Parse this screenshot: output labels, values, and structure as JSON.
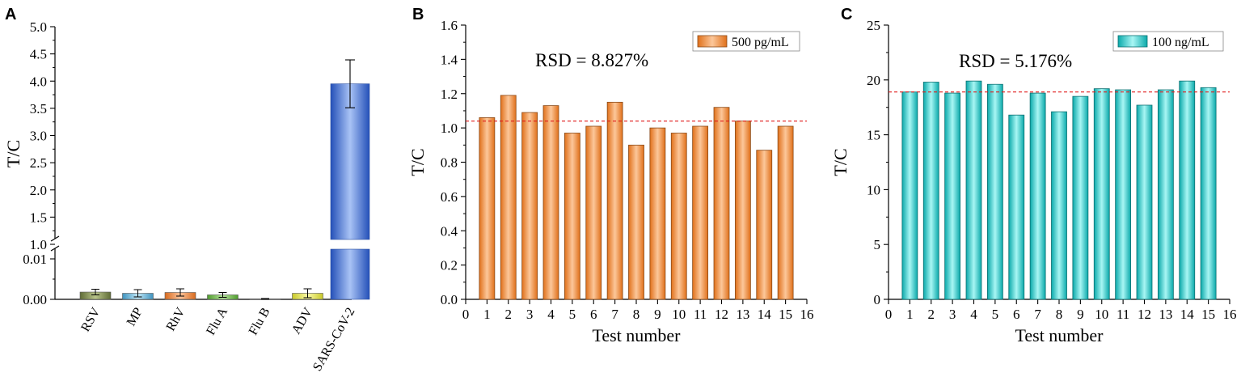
{
  "panels": {
    "a_letter": "A",
    "b_letter": "B",
    "c_letter": "C"
  },
  "colors": {
    "rsv": "#7d8a4e",
    "mp": "#62b4d8",
    "rhv": "#ee8a46",
    "flua": "#6fbf47",
    "flub": "#6f8fd0",
    "adv": "#e8e84a",
    "sars": "#3d6fd3",
    "orange": "#f08a2c",
    "cyan": "#1fc8c8",
    "ref_line": "#e01b1b"
  },
  "chart_data": [
    {
      "panel": "A",
      "type": "bar",
      "ylabel": "T/C",
      "broken_axis": true,
      "lower_ylim": [
        0,
        0.014
      ],
      "upper_ylim": [
        1.0,
        5.0
      ],
      "lower_ticks": [
        "0.00",
        "0.01"
      ],
      "upper_ticks": [
        "1.0",
        "1.5",
        "2.0",
        "2.5",
        "3.0",
        "3.5",
        "4.0",
        "4.5",
        "5.0"
      ],
      "categories": [
        "RSV",
        "MP",
        "RhV",
        "Flu A",
        "Flu B",
        "ADV",
        "SARS-CoV-2"
      ],
      "values": [
        0.0018,
        0.0015,
        0.0017,
        0.0011,
        0.0001,
        0.0015,
        3.95
      ],
      "errors": [
        0.0007,
        0.0009,
        0.0009,
        0.0006,
        0.0001,
        0.0011,
        0.44
      ]
    },
    {
      "panel": "B",
      "type": "bar",
      "xlabel": "Test number",
      "ylabel": "T/C",
      "xlim": [
        0,
        16
      ],
      "ylim": [
        0,
        1.6
      ],
      "x_ticks": [
        "0",
        "1",
        "2",
        "3",
        "4",
        "5",
        "6",
        "7",
        "8",
        "9",
        "10",
        "11",
        "12",
        "13",
        "14",
        "15",
        "16"
      ],
      "y_ticks": [
        "0.0",
        "0.2",
        "0.4",
        "0.6",
        "0.8",
        "1.0",
        "1.2",
        "1.4",
        "1.6"
      ],
      "x": [
        1,
        2,
        3,
        4,
        5,
        6,
        7,
        8,
        9,
        10,
        11,
        12,
        13,
        14,
        15
      ],
      "values": [
        1.06,
        1.19,
        1.09,
        1.13,
        0.97,
        1.01,
        1.15,
        0.9,
        1.0,
        0.97,
        1.01,
        1.12,
        1.04,
        0.87,
        1.01
      ],
      "reference_line": 1.04,
      "annotation": "RSD = 8.827%",
      "legend": "500 pg/mL",
      "legend_position": "top-right"
    },
    {
      "panel": "C",
      "type": "bar",
      "xlabel": "Test number",
      "ylabel": "T/C",
      "xlim": [
        0,
        16
      ],
      "ylim": [
        0,
        25
      ],
      "x_ticks": [
        "0",
        "1",
        "2",
        "3",
        "4",
        "5",
        "6",
        "7",
        "8",
        "9",
        "10",
        "11",
        "12",
        "13",
        "14",
        "15",
        "16"
      ],
      "y_ticks": [
        "0",
        "5",
        "10",
        "15",
        "20",
        "25"
      ],
      "x": [
        1,
        2,
        3,
        4,
        5,
        6,
        7,
        8,
        9,
        10,
        11,
        12,
        13,
        14,
        15
      ],
      "values": [
        18.9,
        19.8,
        18.8,
        19.9,
        19.6,
        16.8,
        18.8,
        17.1,
        18.5,
        19.2,
        19.1,
        17.7,
        19.1,
        19.9,
        19.3
      ],
      "reference_line": 18.9,
      "annotation": "RSD = 5.176%",
      "legend": "100 ng/mL",
      "legend_position": "top-right"
    }
  ]
}
